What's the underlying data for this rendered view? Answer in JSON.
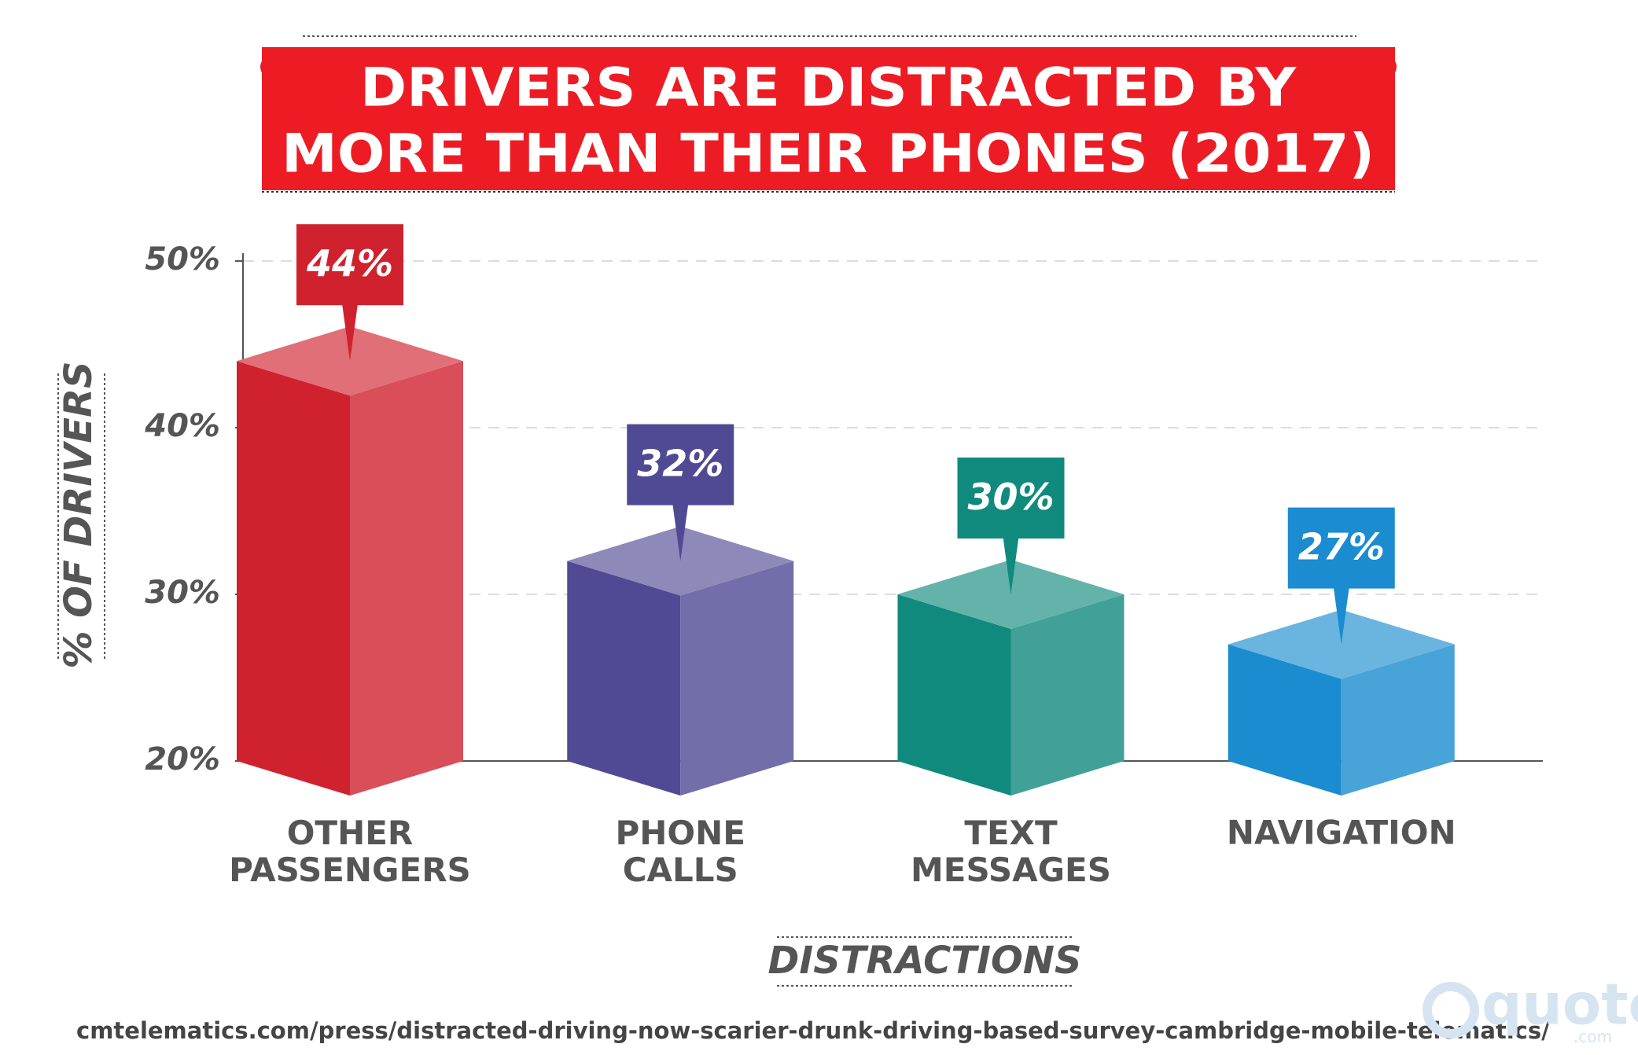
{
  "chart_data": {
    "type": "bar3d",
    "title": [
      "DRIVERS ARE DISTRACTED BY",
      "MORE THAN THEIR PHONES (2017)"
    ],
    "categories": [
      "OTHER PASSENGERS",
      "PHONE CALLS",
      "TEXT MESSAGES",
      "NAVIGATION"
    ],
    "values": [
      44,
      32,
      30,
      27
    ],
    "value_labels": [
      "44%",
      "32%",
      "30%",
      "27%"
    ],
    "colors": [
      "#d0222e",
      "#4f4a93",
      "#118a7e",
      "#1a8ccf"
    ],
    "ylim": [
      20,
      50
    ],
    "yticks": [
      {
        "value": 20,
        "label": "20%"
      },
      {
        "value": 30,
        "label": "30%"
      },
      {
        "value": 40,
        "label": "40%"
      },
      {
        "value": 50,
        "label": "50%"
      }
    ],
    "grid": true,
    "ylabel": "% OF DRIVERS",
    "xlabel": "DISTRACTIONS",
    "source": "cmtelematics.com/press/distracted-driving-now-scarier-drunk-driving-based-survey-cambridge-mobile-telematics/",
    "logo": {
      "name": "quote",
      "suffix": ".com"
    }
  }
}
